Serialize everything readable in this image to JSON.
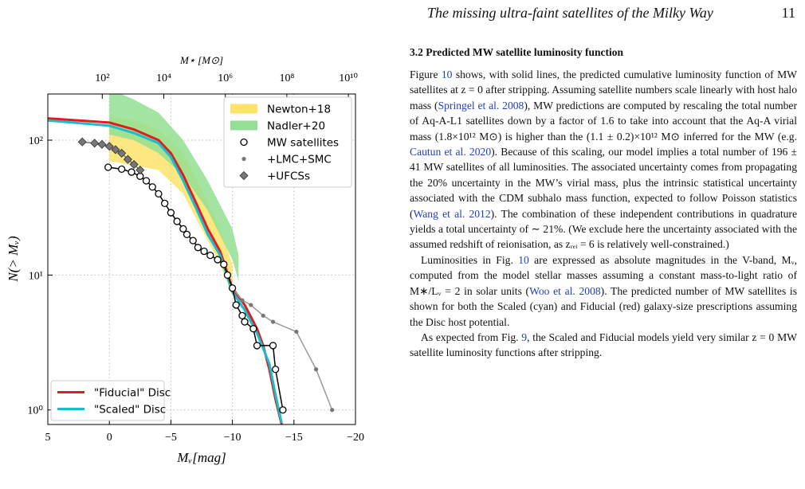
{
  "header": {
    "title": "The missing ultra-faint satellites of the Milky Way",
    "page": "11"
  },
  "chart_data": {
    "type": "line",
    "x_label": "Mᵥ[mag]",
    "y_label": "N(> Mᵥ)",
    "x2_label": "M⋆ [M⊙]",
    "xlim": [
      5,
      -20
    ],
    "xticks": [
      5,
      0,
      {
        "value": -5,
        "label": "−5"
      },
      {
        "value": -10,
        "label": "−10"
      },
      {
        "value": -15,
        "label": "−15"
      },
      {
        "value": -20,
        "label": "−20"
      }
    ],
    "ylim": [
      0.78,
      220
    ],
    "ylog": true,
    "yticks": [
      {
        "value": 1,
        "label": "10⁰"
      },
      {
        "value": 10,
        "label": "10¹"
      },
      {
        "value": 100,
        "label": "10²"
      }
    ],
    "x2lim": [
      1.7,
      17000000000
    ],
    "x2log": true,
    "x2ticks": [
      {
        "value": 100,
        "label": "10²"
      },
      {
        "value": 10000,
        "label": "10⁴"
      },
      {
        "value": 1000000,
        "label": "10⁶"
      },
      {
        "value": 100000000,
        "label": "10⁸"
      },
      {
        "value": 10000000000,
        "label": "10¹⁰"
      }
    ],
    "grid": true,
    "bands": [
      {
        "name": "Newton+18",
        "color": "#fde36a",
        "legend": "upper right",
        "x": [
          0,
          -2,
          -4,
          -6,
          -8,
          -9,
          -10
        ],
        "lower": [
          70,
          65,
          60,
          40,
          18,
          12,
          7
        ],
        "upper": [
          150,
          140,
          120,
          80,
          35,
          22,
          12
        ]
      },
      {
        "name": "Nadler+20",
        "color": "#93df93",
        "legend": "upper right",
        "x": [
          0,
          -2,
          -4,
          -6,
          -8,
          -10,
          -10.5
        ],
        "lower": [
          110,
          100,
          80,
          55,
          30,
          13,
          9
        ],
        "upper": [
          240,
          200,
          160,
          100,
          50,
          22,
          14
        ]
      }
    ],
    "series": [
      {
        "name": "\"Fiducial\" Disc",
        "color": "#e41a1c",
        "marker": "none",
        "legend": "lower left",
        "x": [
          5,
          0,
          -2,
          -4,
          -5,
          -6,
          -7,
          -8,
          -9,
          -9.5,
          -10,
          -11,
          -12,
          -12.5,
          -13,
          -13.5,
          -14
        ],
        "values": [
          145,
          135,
          120,
          100,
          80,
          55,
          35,
          22,
          15,
          11,
          8,
          6,
          4,
          3,
          2,
          1.2,
          0.78
        ]
      },
      {
        "name": "\"Scaled\" Disc",
        "color": "#17becf",
        "marker": "none",
        "legend": "lower left",
        "x": [
          5,
          0,
          -2,
          -4,
          -5,
          -6,
          -7,
          -8,
          -9,
          -10,
          -11,
          -12,
          -13,
          -13.5,
          -14
        ],
        "values": [
          140,
          128,
          113,
          95,
          75,
          50,
          32,
          20,
          14,
          7.5,
          5.5,
          3.7,
          2.2,
          1.3,
          0.8
        ]
      },
      {
        "name": "+LMC+SMC",
        "color": "#999999",
        "marker": "dot",
        "legend": "upper right",
        "x": [
          -10,
          -10.8,
          -11.5,
          -12.5,
          -13.3,
          -15.2,
          -16.8,
          -18.1
        ],
        "values": [
          8,
          6.5,
          6,
          5,
          4.5,
          3.8,
          2,
          1
        ]
      },
      {
        "name": "MW satellites",
        "color": "#000000",
        "marker": "circle-open",
        "legend": "upper right",
        "x": [
          0.1,
          -1,
          -1.8,
          -2.5,
          -3,
          -3.5,
          -4,
          -4.5,
          -5,
          -5.5,
          -6,
          -6.3,
          -6.8,
          -7.2,
          -7.7,
          -8.2,
          -8.8,
          -9.3,
          -9.6,
          -10,
          -10.3,
          -10.8,
          -11,
          -11.7,
          -12,
          -13.3,
          -13.5,
          -14.1
        ],
        "values": [
          63,
          61,
          58,
          54,
          50,
          45,
          40,
          34,
          29,
          25,
          22,
          20,
          18,
          16,
          15,
          14,
          13,
          12,
          10,
          8,
          6,
          5,
          4.5,
          4,
          3,
          3,
          2,
          1
        ]
      },
      {
        "name": "+UFCSs",
        "color": "#777777",
        "marker": "diamond",
        "legend": "upper right",
        "x": [
          2.2,
          1.2,
          0.6,
          0,
          -0.5,
          -1,
          -1.5,
          -2,
          -2.5
        ],
        "values": [
          97,
          95,
          93,
          90,
          85,
          80,
          72,
          66,
          60
        ]
      }
    ]
  },
  "section": {
    "heading": "3.2 Predicted MW satellite luminosity function",
    "paragraphs": [
      [
        {
          "text": "Figure "
        },
        {
          "text": "10",
          "link": true
        },
        {
          "text": " shows, with solid lines, the predicted cumulative luminosity function of MW satellites at z = 0 after stripping. Assuming satellite numbers scale linearly with host halo mass ("
        },
        {
          "text": "Springel et al. 2008",
          "link": true
        },
        {
          "text": "), MW predictions are computed by rescaling the total number of Aq-A-L1 satellites down by a factor of 1.6 to take into account that the Aq-A virial mass (1.8×10¹² M⊙) is higher than the (1.1 ± 0.2)×10¹² M⊙ inferred for the MW (e.g. "
        },
        {
          "text": "Cautun et al. 2020",
          "link": true
        },
        {
          "text": "). Because of this scaling, our model implies a total number of 196 ± 41 MW satellites of all luminosities. The associated uncertainty comes from propagating the 20% uncertainty in the MW’s virial mass, plus the intrinsic statistical uncertainty associated with the CDM subhalo mass function, expected to follow Poisson statistics ("
        },
        {
          "text": "Wang et al. 2012",
          "link": true
        },
        {
          "text": "). The combination of these independent contributions in quadrature yields a total uncertainty of ∼ 21%. (We exclude here the uncertainty associated with the assumed redshift of reionisation, as zᵣₑᵢ = 6 is relatively well-constrained.)"
        }
      ],
      [
        {
          "text": "Luminosities in Fig. "
        },
        {
          "text": "10",
          "link": true
        },
        {
          "text": " are expressed as absolute magnitudes in the V-band, Mᵥ, computed from the model stellar masses assuming a constant mass-to-light ratio of M∗/Lᵥ = 2 in solar units ("
        },
        {
          "text": "Woo et al. 2008",
          "link": true
        },
        {
          "text": "). The predicted number of MW satellites is shown for both the Scaled (cyan) and Fiducial (red) galaxy-size prescriptions assuming the Disc host potential."
        }
      ],
      [
        {
          "text": "As expected from Fig. "
        },
        {
          "text": "9",
          "link": true
        },
        {
          "text": ", the Scaled and Fiducial models yield very similar z = 0 MW satellite luminosity functions after stripping."
        }
      ]
    ]
  }
}
